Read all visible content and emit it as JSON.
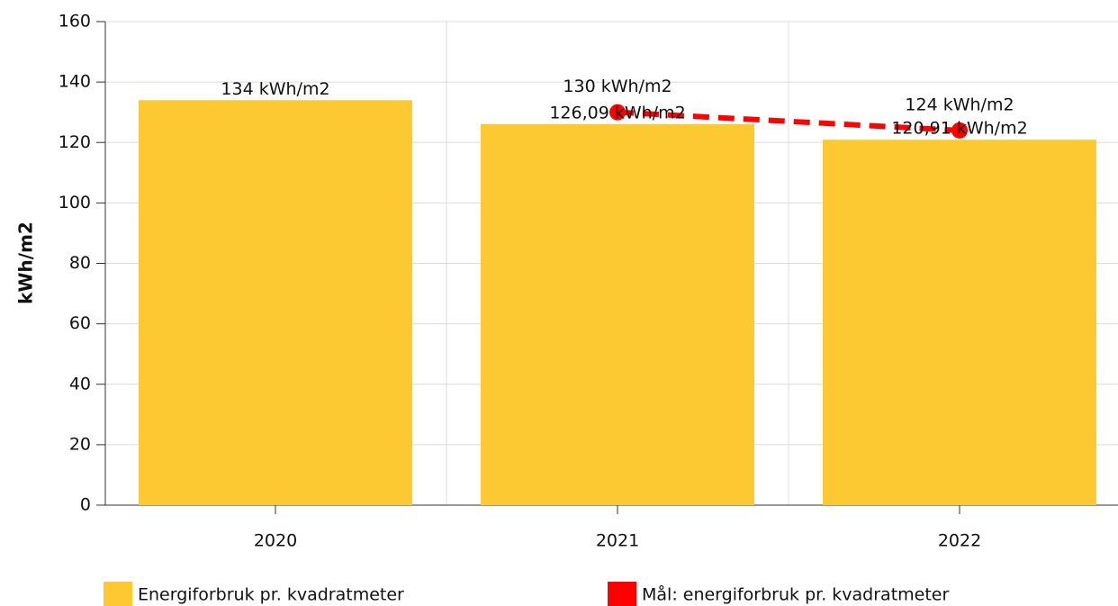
{
  "chart_data": {
    "type": "bar",
    "y_label": "kWh/m2",
    "categories": [
      "2020",
      "2021",
      "2022"
    ],
    "series": [
      {
        "name": "Energiforbruk pr. kvadratmeter",
        "type": "bar",
        "color": "#fcc933",
        "values": [
          134,
          126.09,
          120.91
        ],
        "value_labels": [
          "134 kWh/m2",
          "126,09 kWh/m2",
          "120,91 kWh/m2"
        ]
      },
      {
        "name": "Mål: energiforbruk pr. kvadratmeter",
        "type": "line",
        "color": "#ff0000",
        "values": [
          null,
          130,
          124
        ],
        "value_labels": [
          null,
          "130 kWh/m2",
          "124 kWh/m2"
        ]
      }
    ],
    "ylim": [
      0,
      160
    ],
    "yticks": [
      0,
      20,
      40,
      60,
      80,
      100,
      120,
      140,
      160
    ],
    "grid": true,
    "legend": "bottom"
  }
}
